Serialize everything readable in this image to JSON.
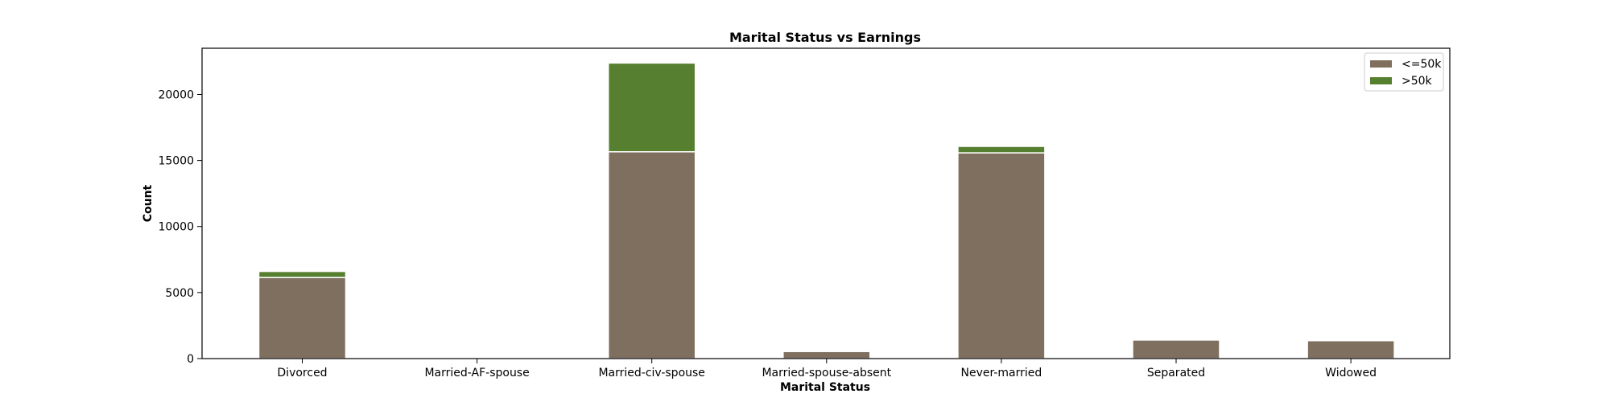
{
  "chart_data": {
    "type": "bar",
    "stacked": true,
    "title": "Marital Status vs Earnings",
    "xlabel": "Marital Status",
    "ylabel": "Count",
    "categories": [
      "Divorced",
      "Married-AF-spouse",
      "Married-civ-spouse",
      "Married-spouse-absent",
      "Never-married",
      "Separated",
      "Widowed"
    ],
    "series": [
      {
        "name": "<=50k",
        "color": "#7f6f5f",
        "values": [
          6140,
          14,
          15660,
          540,
          15580,
          1410,
          1360
        ]
      },
      {
        "name": ">50k",
        "color": "#567f2f",
        "values": [
          460,
          9,
          6720,
          40,
          490,
          70,
          90
        ]
      }
    ],
    "ylim": [
      0,
      23500
    ],
    "yticks": [
      0,
      5000,
      10000,
      15000,
      20000
    ],
    "grid": false,
    "legend_position": "top-right"
  }
}
